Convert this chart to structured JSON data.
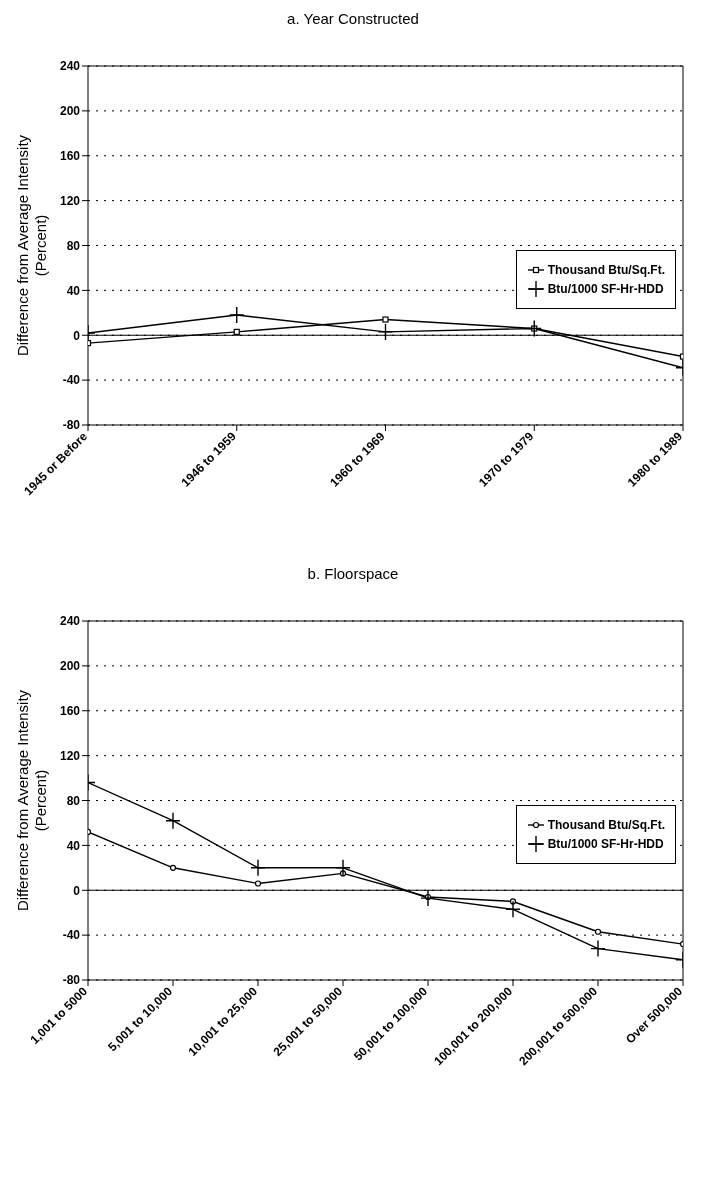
{
  "chart_data": [
    {
      "type": "line",
      "title": "a. Year Constructed",
      "ylabel": "Difference from Average Intensity (Percent)",
      "categories": [
        "1945 or Before",
        "1946 to 1959",
        "1960 to 1969",
        "1970 to 1979",
        "1980 to 1989"
      ],
      "series": [
        {
          "name": "Thousand Btu/Sq.Ft.",
          "color": "#000000",
          "marker": "square",
          "values": [
            -7,
            3,
            14,
            6,
            -19
          ]
        },
        {
          "name": "Btu/1000 SF-Hr-HDD",
          "color": "#000000",
          "marker": "cross",
          "values": [
            2,
            18,
            3,
            6,
            -29
          ]
        }
      ],
      "ylim": [
        -80,
        240
      ],
      "yticks": [
        -80,
        -40,
        0,
        40,
        80,
        120,
        160,
        200,
        240
      ],
      "grid": "y",
      "legend": "right",
      "ref_lines": [
        {
          "axis": "y",
          "value": 0,
          "line_style": "solid"
        }
      ]
    },
    {
      "type": "line",
      "title": "b. Floorspace",
      "ylabel": "Difference from Average Intensity (Percent)",
      "categories": [
        "1,001 to 5000",
        "5,001 to 10,000",
        "10,001 to 25,000",
        "25,001 to 50,000",
        "50,001 to 100,000",
        "100,001 to 200,000",
        "200,001 to 500,000",
        "Over 500,000"
      ],
      "series": [
        {
          "name": "Thousand Btu/Sq.Ft.",
          "color": "#000000",
          "marker": "circle",
          "values": [
            52,
            20,
            6,
            15,
            -6,
            -10,
            -37,
            -48
          ]
        },
        {
          "name": "Btu/1000 SF-Hr-HDD",
          "color": "#000000",
          "marker": "cross",
          "values": [
            96,
            62,
            20,
            20,
            -7,
            -17,
            -52,
            -62
          ]
        }
      ],
      "ylim": [
        -80,
        240
      ],
      "yticks": [
        -80,
        -40,
        0,
        40,
        80,
        120,
        160,
        200,
        240
      ],
      "grid": "y",
      "legend": "right",
      "ref_lines": [
        {
          "axis": "y",
          "value": 0,
          "line_style": "solid"
        }
      ]
    }
  ]
}
